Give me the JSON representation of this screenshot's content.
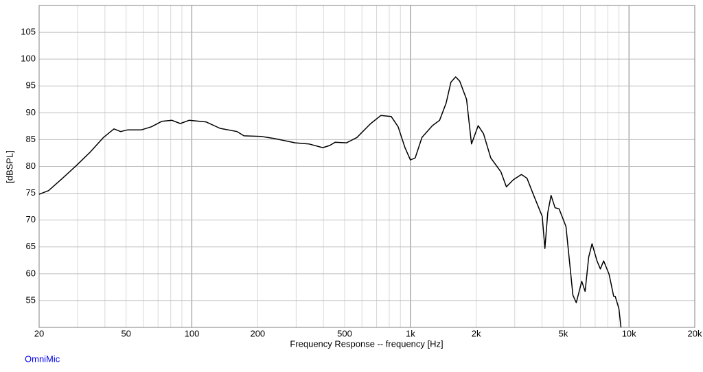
{
  "chart_data": {
    "type": "line",
    "xlabel": "Frequency Response -- frequency [Hz]",
    "ylabel": "[dBSPL]",
    "watermark": "OmniMic",
    "xscale": "log",
    "grid": true,
    "color": "#000000",
    "xlim": [
      20,
      20000
    ],
    "ylim": [
      50,
      110
    ],
    "xticks": [
      20,
      50,
      100,
      200,
      500,
      {
        "value": 1000,
        "label": "1k"
      },
      {
        "value": 2000,
        "label": "2k"
      },
      {
        "value": 5000,
        "label": "5k"
      },
      {
        "value": 10000,
        "label": "10k"
      },
      {
        "value": 20000,
        "label": "20k"
      }
    ],
    "xgrid_minor": [
      30,
      40,
      60,
      70,
      80,
      90,
      300,
      400,
      600,
      700,
      800,
      900,
      3000,
      4000,
      6000,
      7000,
      8000,
      9000
    ],
    "yticks": [
      55,
      60,
      65,
      70,
      75,
      80,
      85,
      90,
      95,
      100,
      105
    ],
    "x": [
      20,
      22.1,
      25.6,
      29.5,
      34.1,
      39.4,
      44,
      47.2,
      50.7,
      58.6,
      65.3,
      72.8,
      81.1,
      88.5,
      97.1,
      116,
      134.5,
      161,
      173,
      207,
      239,
      297,
      343,
      397,
      427,
      452,
      510,
      569,
      658,
      733,
      817,
      878,
      944,
      1000,
      1052,
      1129,
      1260,
      1360,
      1456,
      1532,
      1610,
      1680,
      1806,
      1903,
      2042,
      2160,
      2330,
      2593,
      2749,
      2955,
      3221,
      3413,
      3665,
      4010,
      4125,
      4250,
      4400,
      4590,
      4790,
      5150,
      5540,
      5740,
      6080,
      6300,
      6540,
      6780,
      7140,
      7400,
      7660,
      8110,
      8510,
      8650,
      8990,
      9190
    ],
    "values": [
      74.8,
      75.5,
      77.8,
      80.1,
      82.6,
      85.4,
      87.0,
      86.5,
      86.8,
      86.8,
      87.4,
      88.4,
      88.6,
      88.0,
      88.6,
      88.3,
      87.1,
      86.5,
      85.7,
      85.6,
      85.2,
      84.4,
      84.2,
      83.5,
      83.9,
      84.5,
      84.4,
      85.4,
      88.0,
      89.5,
      89.3,
      87.4,
      83.5,
      81.2,
      81.6,
      85.4,
      87.6,
      88.6,
      91.8,
      95.7,
      96.7,
      95.9,
      92.5,
      84.2,
      87.6,
      86.1,
      81.6,
      79.0,
      76.2,
      77.5,
      78.5,
      77.8,
      74.6,
      70.7,
      64.7,
      71.4,
      74.6,
      72.3,
      72.1,
      68.8,
      56.0,
      54.6,
      58.6,
      56.7,
      63.1,
      65.6,
      62.4,
      60.9,
      62.4,
      59.9,
      55.8,
      55.8,
      53.5,
      50.0
    ]
  }
}
